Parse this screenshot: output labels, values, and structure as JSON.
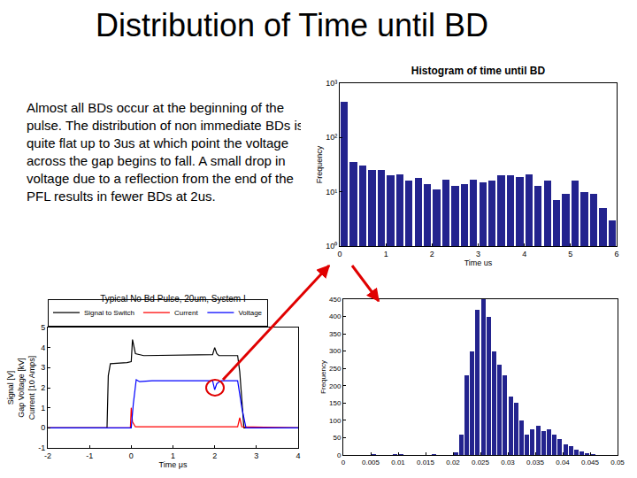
{
  "slide": {
    "title": "Distribution of Time until BD",
    "text": "Almost all BDs occur at the beginning of the pulse.  The distribution of non immediate BDs is quite flat up to 3us at which point the voltage across the gap begins to fall.  A small drop in voltage due to a reflection from the end of the PFL results in fewer BDs at 2us."
  },
  "chart_data": [
    {
      "type": "histogram",
      "title": "Histogram of time until BD",
      "x_label": "Time us",
      "y_label": "Frequency",
      "bins": [
        0,
        0.2,
        0.4,
        0.6,
        0.8,
        1.0,
        1.2,
        1.4,
        1.6,
        1.8,
        2.0,
        2.2,
        2.4,
        2.6,
        2.8,
        3.0,
        3.2,
        3.4,
        3.6,
        3.8,
        4.0,
        4.2,
        4.4,
        4.6,
        4.8,
        5.0,
        5.2,
        5.4,
        5.6,
        5.8,
        6.0
      ],
      "counts": [
        450,
        35,
        30,
        25,
        25,
        20,
        21,
        16,
        18,
        14,
        11,
        17,
        13,
        14,
        17,
        15,
        16,
        20,
        20,
        19,
        21,
        13,
        16,
        7,
        9,
        16,
        10,
        9,
        5,
        3
      ],
      "color": "#23238e",
      "log": "y",
      "grid": false,
      "xlim": [
        0,
        6
      ],
      "xticks": [
        0,
        1,
        2,
        3,
        4,
        5,
        6
      ],
      "ylim": [
        1,
        1000
      ],
      "yticks": [
        {
          "value": 1,
          "label": "10⁰"
        },
        {
          "value": 10,
          "label": "10¹"
        },
        {
          "value": 100,
          "label": "10²"
        },
        {
          "value": 1000,
          "label": "10³"
        }
      ]
    },
    {
      "type": "line",
      "title": "Typical No Bd Pulse, 20um, System I",
      "x_label": "Time μs",
      "y_label": [
        "Signal [V]",
        "Gap Voltage [kV]",
        "Current [10 Amps]"
      ],
      "legend": "top",
      "grid": false,
      "xlim": [
        -2,
        4
      ],
      "xticks": [
        -2,
        -1,
        0,
        1,
        2,
        3,
        4
      ],
      "ylim": [
        -1,
        5
      ],
      "yticks": [
        -1,
        0,
        1,
        2,
        3,
        4,
        5
      ],
      "series": [
        {
          "name": "Signal to Switch",
          "color": "#000000",
          "x": [
            -2,
            -0.58,
            -0.55,
            -0.5,
            -0.1,
            0,
            0.03,
            0.1,
            0.3,
            1.95,
            2.0,
            2.05,
            2.1,
            2.55,
            2.6,
            2.65,
            2.7,
            4
          ],
          "values": [
            0,
            0,
            2.6,
            3.2,
            3.25,
            3.3,
            4.4,
            3.7,
            3.6,
            3.65,
            4.0,
            3.7,
            3.6,
            3.6,
            2.8,
            1.2,
            0,
            0
          ]
        },
        {
          "name": "Current",
          "color": "#ff0000",
          "x": [
            -2,
            -0.02,
            0,
            0.03,
            0.1,
            2.55,
            2.6,
            2.65,
            4
          ],
          "values": [
            0,
            0,
            1.0,
            0.3,
            0.05,
            0.05,
            0.5,
            0.05,
            0
          ]
        },
        {
          "name": "Voltage",
          "color": "#0000ff",
          "x": [
            -2,
            0,
            0.05,
            0.12,
            0.2,
            0.5,
            1.95,
            2.0,
            2.05,
            2.15,
            2.55,
            2.65,
            2.75,
            4
          ],
          "values": [
            0,
            0,
            1.2,
            2.4,
            2.3,
            2.35,
            2.35,
            1.9,
            2.2,
            2.35,
            2.35,
            1.0,
            0,
            0
          ]
        }
      ]
    },
    {
      "type": "histogram",
      "y_label": "Frequency",
      "bins": [
        0,
        0.001,
        0.002,
        0.003,
        0.004,
        0.005,
        0.006,
        0.007,
        0.008,
        0.009,
        0.01,
        0.011,
        0.012,
        0.013,
        0.014,
        0.015,
        0.016,
        0.017,
        0.018,
        0.019,
        0.02,
        0.021,
        0.022,
        0.023,
        0.024,
        0.025,
        0.026,
        0.027,
        0.028,
        0.029,
        0.03,
        0.031,
        0.032,
        0.033,
        0.034,
        0.035,
        0.036,
        0.037,
        0.038,
        0.039,
        0.04,
        0.041,
        0.042,
        0.043,
        0.044,
        0.045,
        0.046,
        0.047,
        0.048,
        0.049,
        0.05
      ],
      "counts": [
        0,
        0,
        0,
        0,
        0,
        2,
        0,
        0,
        0,
        3,
        2,
        0,
        0,
        0,
        0,
        0,
        2,
        0,
        0,
        0,
        8,
        60,
        230,
        300,
        420,
        450,
        400,
        300,
        260,
        230,
        170,
        150,
        100,
        60,
        75,
        85,
        70,
        75,
        60,
        45,
        30,
        25,
        15,
        10,
        5,
        2,
        0,
        0,
        0,
        0
      ],
      "color": "#23238e",
      "grid": false,
      "xlim": [
        0,
        0.05
      ],
      "xticks": [
        0,
        0.005,
        0.01,
        0.015,
        0.02,
        0.025,
        0.03,
        0.035,
        0.04,
        0.045,
        0.05
      ],
      "ylim": [
        0,
        450
      ],
      "yticks": [
        0,
        50,
        100,
        150,
        200,
        250,
        300,
        350,
        400,
        450
      ]
    }
  ]
}
